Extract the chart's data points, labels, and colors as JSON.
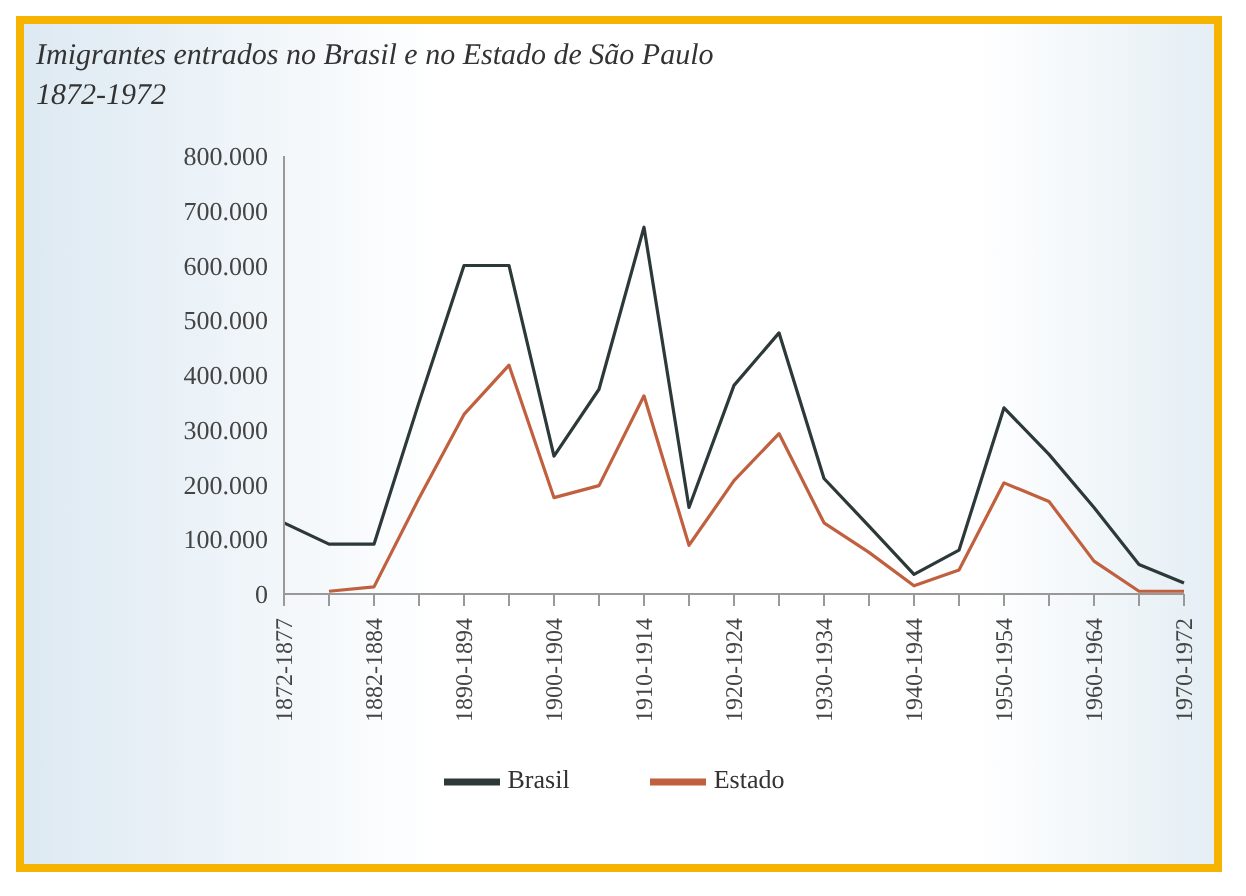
{
  "chart_data": {
    "type": "line",
    "title": "Imigrantes entrados no Brasil e no Estado de São Paulo",
    "subtitle": "1872-1972",
    "categories": [
      "1872-1877",
      null,
      "1882-1884",
      null,
      "1890-1894",
      null,
      "1900-1904",
      null,
      "1910-1914",
      null,
      "1920-1924",
      null,
      "1930-1934",
      null,
      "1940-1944",
      null,
      "1950-1954",
      null,
      "1960-1964",
      null,
      "1970-1972"
    ],
    "series": [
      {
        "name": "Brasil",
        "color": "#2d3838",
        "values": [
          130000,
          91000,
          91000,
          350000,
          600000,
          600000,
          252000,
          374000,
          670000,
          158000,
          381000,
          477000,
          211000,
          124000,
          36000,
          80000,
          340000,
          255000,
          158000,
          54000,
          20000
        ]
      },
      {
        "name": "Estado",
        "color": "#c0603f",
        "values": [
          null,
          5000,
          13000,
          175000,
          328000,
          418000,
          176000,
          198000,
          362000,
          89000,
          207000,
          293000,
          130000,
          76000,
          15000,
          44000,
          203000,
          169000,
          60000,
          5000,
          5000
        ]
      }
    ],
    "ylim": [
      0,
      800000
    ],
    "yticks": [
      {
        "value": 0,
        "label": "0"
      },
      {
        "value": 100000,
        "label": "100.000"
      },
      {
        "value": 200000,
        "label": "200.000"
      },
      {
        "value": 300000,
        "label": "300.000"
      },
      {
        "value": 400000,
        "label": "400.000"
      },
      {
        "value": 500000,
        "label": "500.000"
      },
      {
        "value": 600000,
        "label": "600.000"
      },
      {
        "value": 700000,
        "label": "700.000"
      },
      {
        "value": 800000,
        "label": "800.000"
      }
    ],
    "grid": false,
    "legend": "bottom",
    "marker": "none",
    "line_style": "solid"
  }
}
